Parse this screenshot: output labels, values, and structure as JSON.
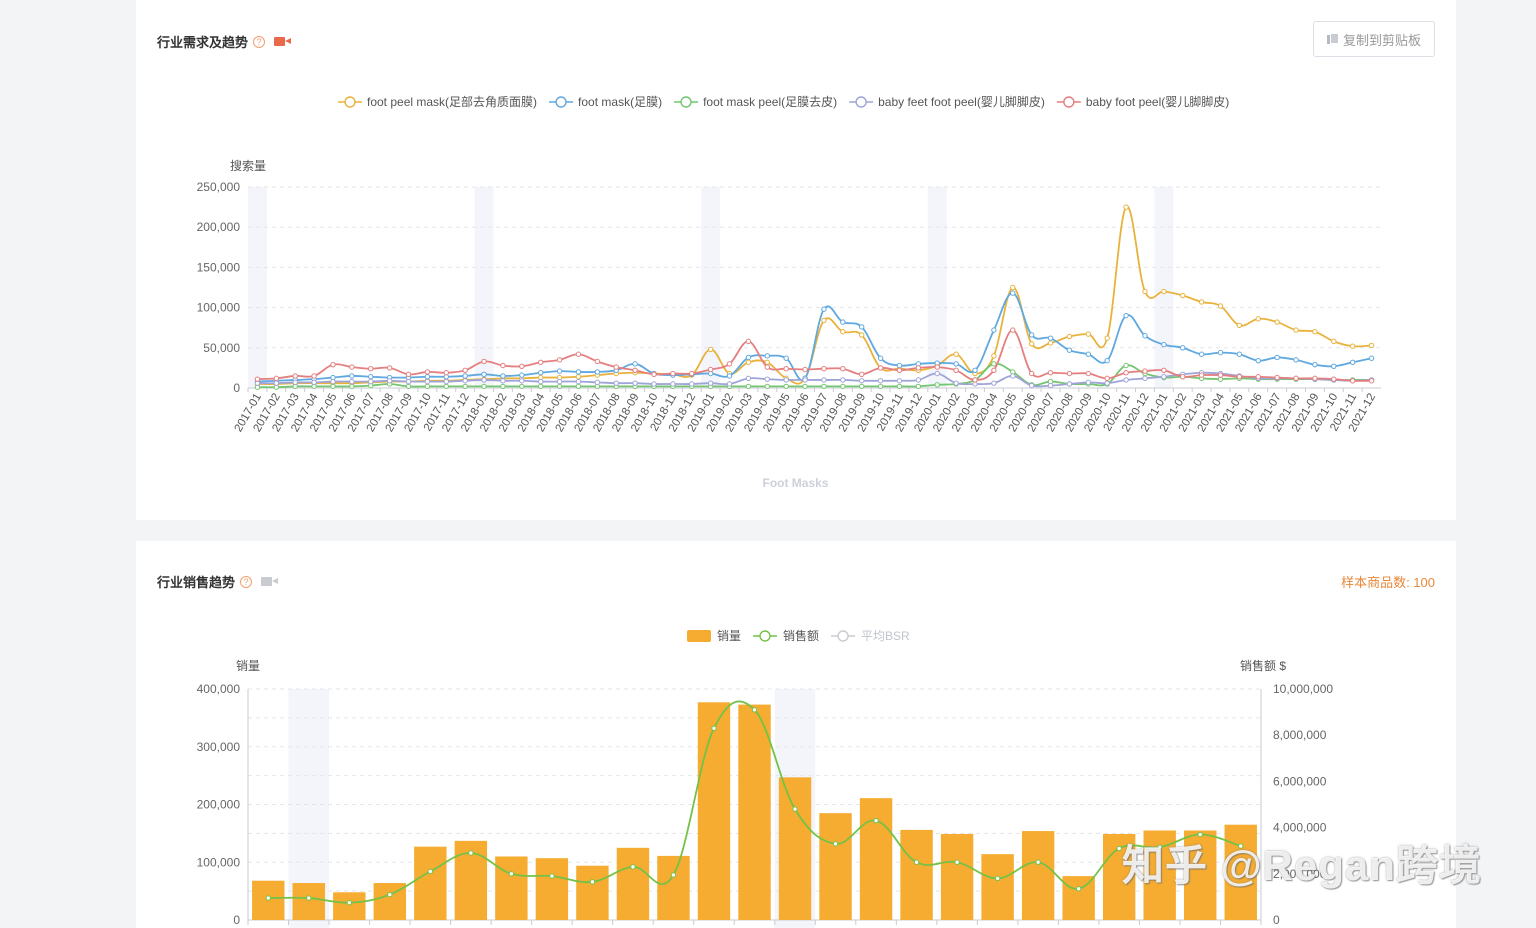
{
  "trend": {
    "title": "行业需求及趋势",
    "copy_label": "复制到剪贴板",
    "icons": [
      "help-icon",
      "video-icon",
      "copy-icon"
    ]
  },
  "sales": {
    "title": "行业销售趋势",
    "sample_label": "样本商品数: 100",
    "icons": [
      "help-icon",
      "video-icon"
    ]
  },
  "watermark": "知乎 @Regan跨境",
  "chart_data": [
    {
      "type": "line",
      "xlabel": "Foot Masks",
      "ylabel": "搜索量",
      "ylim": [
        0,
        250000
      ],
      "yticks": [
        "0",
        "50,000",
        "100,000",
        "150,000",
        "200,000",
        "250,000"
      ],
      "grid": true,
      "legend_position": "top-center",
      "categories": [
        "2017-01",
        "2017-02",
        "2017-03",
        "2017-04",
        "2017-05",
        "2017-06",
        "2017-07",
        "2017-08",
        "2017-09",
        "2017-10",
        "2017-11",
        "2017-12",
        "2018-01",
        "2018-02",
        "2018-03",
        "2018-04",
        "2018-05",
        "2018-06",
        "2018-07",
        "2018-08",
        "2018-09",
        "2018-10",
        "2018-11",
        "2018-12",
        "2019-01",
        "2019-02",
        "2019-03",
        "2019-04",
        "2019-05",
        "2019-06",
        "2019-07",
        "2019-08",
        "2019-09",
        "2019-10",
        "2019-11",
        "2019-12",
        "2020-01",
        "2020-02",
        "2020-03",
        "2020-04",
        "2020-05",
        "2020-06",
        "2020-07",
        "2020-08",
        "2020-09",
        "2020-10",
        "2020-11",
        "2020-12",
        "2021-01",
        "2021-02",
        "2021-03",
        "2021-04",
        "2021-05",
        "2021-06",
        "2021-07",
        "2021-08",
        "2021-09",
        "2021-10",
        "2021-11",
        "2021-12"
      ],
      "highlight_categories": [
        "2017-01",
        "2018-01",
        "2019-01",
        "2020-01",
        "2021-01"
      ],
      "series": [
        {
          "name": "foot peel mask(足部去角质面膜)",
          "color": "#e8b23c",
          "values": [
            5000,
            5000,
            6000,
            6000,
            6000,
            6000,
            7000,
            8000,
            8000,
            9000,
            9000,
            10000,
            11000,
            12000,
            12000,
            13000,
            13000,
            14000,
            16000,
            18000,
            19000,
            18000,
            17000,
            16000,
            48000,
            18000,
            32000,
            32000,
            12000,
            12000,
            84000,
            70000,
            66000,
            25000,
            24000,
            22000,
            28000,
            42000,
            18000,
            40000,
            125000,
            55000,
            56000,
            64000,
            67000,
            62000,
            225000,
            120000,
            120000,
            115000,
            107000,
            102000,
            78000,
            86000,
            82000,
            72000,
            70000,
            58000,
            52000,
            53000
          ]
        },
        {
          "name": "foot mask(足膜)",
          "color": "#5fa8e0",
          "values": [
            8000,
            9000,
            10000,
            11000,
            13000,
            15000,
            14000,
            13000,
            13000,
            14000,
            14000,
            15000,
            17000,
            15000,
            16000,
            19000,
            21000,
            20000,
            20000,
            22000,
            30000,
            18000,
            16000,
            17000,
            18000,
            15000,
            38000,
            40000,
            37000,
            12000,
            98000,
            82000,
            76000,
            37000,
            28000,
            30000,
            31000,
            30000,
            22000,
            72000,
            118000,
            66000,
            62000,
            47000,
            42000,
            34000,
            90000,
            65000,
            54000,
            50000,
            42000,
            44000,
            42000,
            34000,
            38000,
            35000,
            29000,
            27000,
            32000,
            37000
          ]
        },
        {
          "name": "foot mask peel(足膜去皮)",
          "color": "#73c66f",
          "values": [
            1000,
            1000,
            2000,
            2000,
            2000,
            2000,
            3000,
            5000,
            2000,
            2000,
            2000,
            2000,
            2000,
            2000,
            2000,
            2000,
            2000,
            2000,
            2000,
            2000,
            2000,
            2000,
            2000,
            2000,
            2000,
            2000,
            2000,
            2000,
            2000,
            2000,
            2000,
            2000,
            2000,
            2000,
            2000,
            2000,
            4000,
            5000,
            10000,
            30000,
            20000,
            4000,
            8000,
            5000,
            5000,
            5000,
            28000,
            18000,
            13000,
            14000,
            12000,
            11000,
            12000,
            11000,
            11000,
            11000,
            11000,
            10000,
            10000,
            10000
          ]
        },
        {
          "name": "baby feet foot peel(婴儿脚脚皮)",
          "color": "#9fa4d8",
          "values": [
            6000,
            6000,
            7000,
            7000,
            8000,
            8000,
            8000,
            9000,
            8000,
            8000,
            8000,
            9000,
            10000,
            9000,
            9000,
            8000,
            8000,
            8000,
            7000,
            6000,
            6000,
            5000,
            5000,
            5000,
            6000,
            5000,
            12000,
            11000,
            10000,
            10000,
            10000,
            10000,
            9000,
            9000,
            9000,
            10000,
            18000,
            6000,
            5000,
            6000,
            15000,
            3000,
            3000,
            5000,
            7000,
            6000,
            10000,
            12000,
            14000,
            17000,
            19000,
            18000,
            15000,
            12000,
            12000,
            12000,
            11000,
            10000,
            9000,
            10000
          ]
        },
        {
          "name": "baby foot peel(婴儿脚脚皮)",
          "color": "#e57f7f",
          "values": [
            11000,
            12000,
            15000,
            15000,
            29000,
            26000,
            24000,
            25000,
            17000,
            20000,
            19000,
            22000,
            33000,
            28000,
            27000,
            32000,
            35000,
            42000,
            33000,
            26000,
            22000,
            17000,
            18000,
            18000,
            23000,
            30000,
            58000,
            26000,
            24000,
            23000,
            24000,
            24000,
            17000,
            25000,
            22000,
            25000,
            26000,
            22000,
            10000,
            22000,
            72000,
            18000,
            19000,
            18000,
            18000,
            12000,
            19000,
            21000,
            22000,
            14000,
            16000,
            16000,
            14000,
            14000,
            13000,
            12000,
            12000,
            11000,
            9000,
            9000
          ]
        }
      ]
    },
    {
      "type": "bar",
      "legend_position": "top-center",
      "ylabel": "销量",
      "y2label": "销售额 $",
      "ylim": [
        0,
        400000
      ],
      "y2lim": [
        0,
        10000000
      ],
      "yticks": [
        "0",
        "100,000",
        "200,000",
        "300,000",
        "400,000"
      ],
      "y2ticks": [
        "0",
        "2,000,000",
        "4,000,000",
        "6,000,000",
        "8,000,000",
        "10,000,000"
      ],
      "grid": true,
      "highlight_bar_indices": [
        1,
        13
      ],
      "series": [
        {
          "name": "销量",
          "kind": "bar",
          "color": "#f5ac31",
          "values": [
            68000,
            64000,
            48000,
            64000,
            127000,
            137000,
            110000,
            107000,
            94000,
            125000,
            111000,
            377000,
            373000,
            247000,
            185000,
            211000,
            156000,
            149000,
            114000,
            154000,
            76000,
            149000,
            155000,
            155000,
            165000
          ]
        },
        {
          "name": "销售额",
          "kind": "line",
          "color": "#73c247",
          "values": [
            950000,
            950000,
            750000,
            1100000,
            2100000,
            2900000,
            2000000,
            1900000,
            1650000,
            2300000,
            1950000,
            8300000,
            9100000,
            4800000,
            3300000,
            4300000,
            2500000,
            2500000,
            1800000,
            2500000,
            1350000,
            3100000,
            3150000,
            3700000,
            3200000
          ]
        },
        {
          "name": "平均BSR",
          "kind": "line",
          "color": "#c8cbd0",
          "values": []
        }
      ]
    }
  ]
}
